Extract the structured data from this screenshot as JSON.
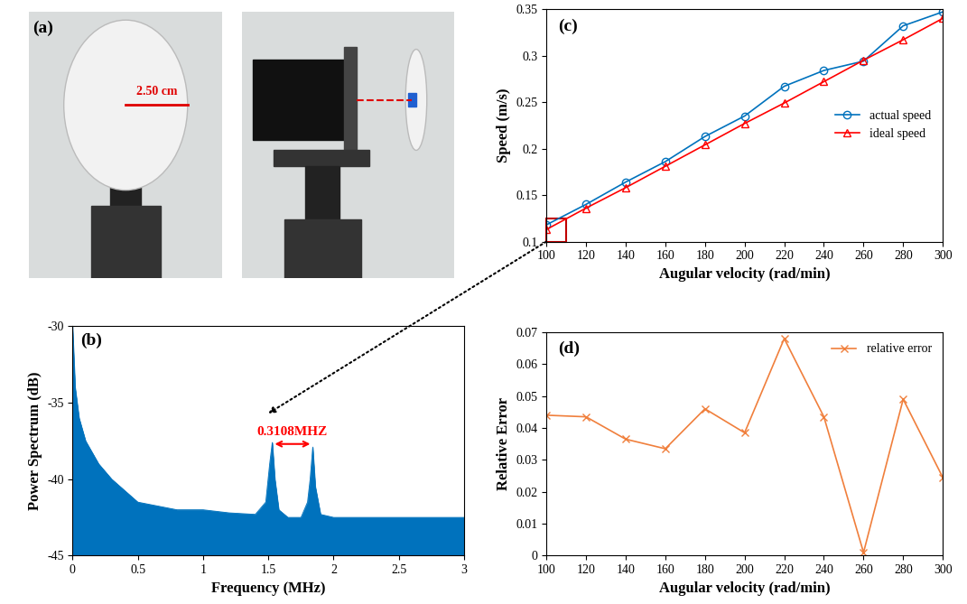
{
  "chart_data": [
    {
      "type": "image",
      "panel": "(a)",
      "annotation": "2.50 cm"
    },
    {
      "type": "area",
      "panel": "(b)",
      "x": [
        0.0,
        0.02,
        0.05,
        0.1,
        0.2,
        0.3,
        0.5,
        0.8,
        1.0,
        1.2,
        1.4,
        1.48,
        1.51,
        1.53,
        1.55,
        1.58,
        1.65,
        1.75,
        1.8,
        1.82,
        1.84,
        1.86,
        1.9,
        2.0,
        2.3,
        2.6,
        3.0
      ],
      "values": [
        -30,
        -34,
        -36,
        -37.5,
        -39,
        -40,
        -41.5,
        -42,
        -42,
        -42.2,
        -42.3,
        -41.5,
        -39,
        -37.6,
        -40,
        -42,
        -42.5,
        -42.5,
        -41.5,
        -40,
        -37.9,
        -40.5,
        -42.3,
        -42.5,
        -42.5,
        -42.5,
        -42.5
      ],
      "color": "#0072bd",
      "xlabel": "Frequency (MHz)",
      "ylabel": "Power Spectrum (dB)",
      "xlim": [
        0,
        3
      ],
      "xticks": [
        0,
        0.5,
        1,
        1.5,
        2,
        2.5,
        3
      ],
      "ylim": [
        -45,
        -30
      ],
      "yticks": [
        -45,
        -40,
        -35,
        -30
      ],
      "annotation": {
        "text": "0.3108MHZ",
        "x": [
          1.53,
          1.84
        ],
        "y": -37.7,
        "color": "#ff0000"
      }
    },
    {
      "type": "line",
      "panel": "(c)",
      "x": [
        100,
        120,
        140,
        160,
        180,
        200,
        220,
        240,
        260,
        280,
        300
      ],
      "series": [
        {
          "name": "actual speed",
          "color": "#0072bd",
          "marker": "o",
          "values": [
            0.118,
            0.14,
            0.164,
            0.186,
            0.213,
            0.235,
            0.267,
            0.284,
            0.294,
            0.332,
            0.347
          ]
        },
        {
          "name": "ideal speed",
          "color": "#ff0000",
          "marker": "^",
          "values": [
            0.113,
            0.136,
            0.158,
            0.181,
            0.204,
            0.227,
            0.249,
            0.272,
            0.295,
            0.317,
            0.34
          ]
        }
      ],
      "xlabel": "Augular velocity (rad/min)",
      "ylabel": "Speed (m/s)",
      "xlim": [
        100,
        300
      ],
      "xticks": [
        100,
        120,
        140,
        160,
        180,
        200,
        220,
        240,
        260,
        280,
        300
      ],
      "ylim": [
        0.1,
        0.35
      ],
      "yticks": [
        0.1,
        0.15,
        0.2,
        0.25,
        0.3,
        0.35
      ],
      "legend": "center right"
    },
    {
      "type": "line",
      "panel": "(d)",
      "x": [
        100,
        120,
        140,
        160,
        180,
        200,
        220,
        240,
        260,
        280,
        300
      ],
      "series": [
        {
          "name": "relative error",
          "color": "#f07f3c",
          "marker": "x",
          "values": [
            0.044,
            0.0435,
            0.0365,
            0.0335,
            0.046,
            0.0385,
            0.068,
            0.0435,
            0.001,
            0.049,
            0.0245
          ]
        }
      ],
      "xlabel": "Augular velocity (rad/min)",
      "ylabel": "Relative Error",
      "xlim": [
        100,
        300
      ],
      "xticks": [
        100,
        120,
        140,
        160,
        180,
        200,
        220,
        240,
        260,
        280,
        300
      ],
      "ylim": [
        0,
        0.07
      ],
      "yticks": [
        0,
        0.01,
        0.02,
        0.03,
        0.04,
        0.05,
        0.06,
        0.07
      ],
      "legend": "upper right"
    }
  ]
}
